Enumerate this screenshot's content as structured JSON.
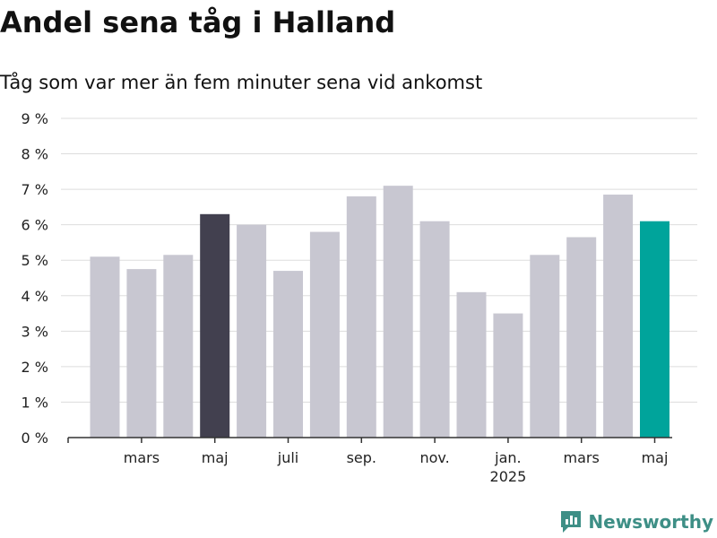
{
  "header": {
    "title": "Andel sena tåg i Halland",
    "subtitle": "Tåg som var mer än fem minuter sena vid ankomst"
  },
  "branding": {
    "logo_text": "Newsworthy",
    "logo_color": "#3e8f86"
  },
  "colors": {
    "default_bar": "#c8c7d1",
    "highlight_dark": "#42404f",
    "highlight_latest": "#00a49b",
    "gridline": "#dddddd",
    "axis": "#333333"
  },
  "chart_data": {
    "type": "bar",
    "y_unit": "%",
    "ylim": [
      0,
      9
    ],
    "y_ticks": [
      "0 %",
      "1 %",
      "2 %",
      "3 %",
      "4 %",
      "5 %",
      "6 %",
      "7 %",
      "8 %",
      "9 %"
    ],
    "grid": true,
    "categories": [
      "2024-02",
      "2024-03",
      "2024-04",
      "2024-05",
      "2024-06",
      "2024-07",
      "2024-08",
      "2024-09",
      "2024-10",
      "2024-11",
      "2024-12",
      "2025-01",
      "2025-02",
      "2025-03",
      "2025-04",
      "2025-05"
    ],
    "values": [
      5.1,
      4.75,
      5.15,
      6.3,
      6.0,
      4.7,
      5.8,
      6.8,
      7.1,
      6.1,
      4.1,
      3.5,
      5.15,
      5.65,
      6.85,
      6.1
    ],
    "bar_highlight": [
      "none",
      "none",
      "none",
      "dark",
      "none",
      "none",
      "none",
      "none",
      "none",
      "none",
      "none",
      "none",
      "none",
      "none",
      "none",
      "latest"
    ],
    "x_tick_labels": [
      {
        "index": 1,
        "label": "mars",
        "sub": ""
      },
      {
        "index": 3,
        "label": "maj",
        "sub": ""
      },
      {
        "index": 5,
        "label": "juli",
        "sub": ""
      },
      {
        "index": 7,
        "label": "sep.",
        "sub": ""
      },
      {
        "index": 9,
        "label": "nov.",
        "sub": ""
      },
      {
        "index": 11,
        "label": "jan.",
        "sub": "2025"
      },
      {
        "index": 13,
        "label": "mars",
        "sub": ""
      },
      {
        "index": 15,
        "label": "maj",
        "sub": ""
      }
    ]
  }
}
